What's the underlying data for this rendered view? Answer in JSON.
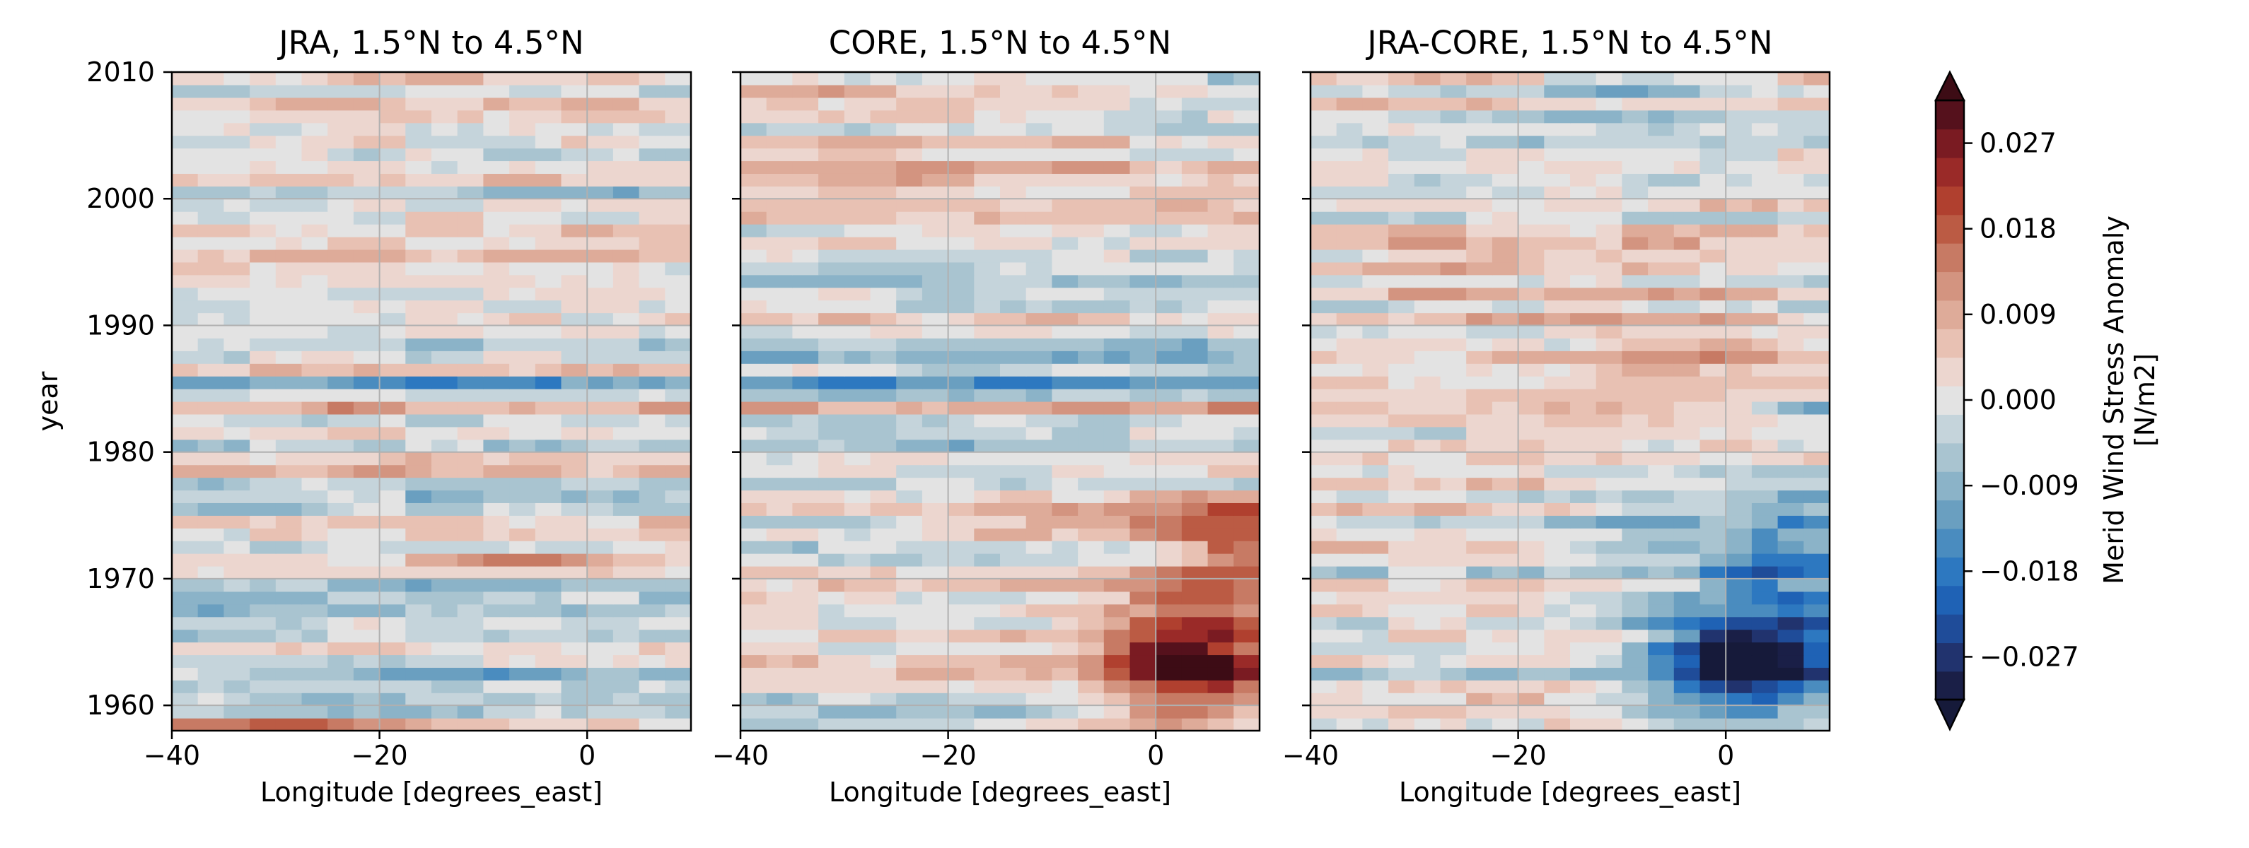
{
  "chart_data": {
    "type": "heatmap",
    "panels": [
      {
        "title": "JRA, 1.5°N to 4.5°N",
        "xlabel": "Longitude [degrees_east]",
        "ylabel": "year",
        "pattern": "jra"
      },
      {
        "title": "CORE, 1.5°N to 4.5°N",
        "xlabel": "Longitude [degrees_east]",
        "ylabel": "",
        "pattern": "core"
      },
      {
        "title": "JRA-CORE, 1.5°N to 4.5°N",
        "xlabel": "Longitude [degrees_east]",
        "ylabel": "",
        "pattern": "diff"
      }
    ],
    "xlim": [
      -40,
      10
    ],
    "ylim": [
      1958,
      2010
    ],
    "x_ticks": [
      -40,
      -20,
      0
    ],
    "x_tick_labels": [
      "−40",
      "−20",
      "0"
    ],
    "y_ticks": [
      1960,
      1970,
      1980,
      1990,
      2000,
      2010
    ],
    "y_tick_labels": [
      "1960",
      "1970",
      "1980",
      "1990",
      "2000",
      "2010"
    ],
    "grid": true,
    "colorbar": {
      "label_line1": "Merid Wind Stress Anomaly",
      "label_line2": "[N/m2]",
      "range": [
        -0.0315,
        0.0315
      ],
      "levels": 21,
      "extend": "both",
      "tick_values": [
        0.027,
        0.018,
        0.009,
        0.0,
        -0.009,
        -0.018,
        -0.027
      ],
      "tick_labels": [
        "0.027",
        "0.018",
        "0.009",
        "0.000",
        "−0.009",
        "−0.018",
        "−0.027"
      ],
      "colors": [
        "#1a1f47",
        "#21336e",
        "#1f4c99",
        "#1f62b5",
        "#2d78c0",
        "#4a8cbf",
        "#6a9fc0",
        "#8bb3c8",
        "#a9c4d0",
        "#c5d4db",
        "#e3e3e3",
        "#ecd6cf",
        "#e8c1b3",
        "#deab99",
        "#d39480",
        "#c77a64",
        "#bb5b44",
        "#b0402f",
        "#9a2a28",
        "#7a1b22",
        "#55111c"
      ],
      "under_color": "#161a3a",
      "over_color": "#3d0c15"
    }
  }
}
